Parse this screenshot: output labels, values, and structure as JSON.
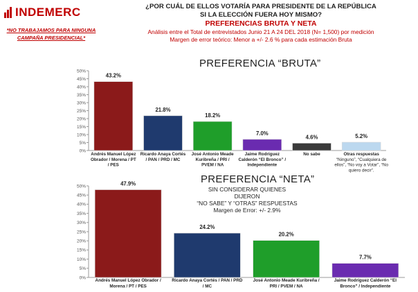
{
  "brand": {
    "name": "INDEMERC",
    "color": "#c00000"
  },
  "disclaimer": "*NO TRABAJAMOS PARA NINGUNA CAMPAÑA PRESIDENCIAL*",
  "header": {
    "question_line1": "¿POR CUÁL DE ELLOS VOTARÍA PARA PRESIDENTE DE LA REPÚBLICA",
    "question_line2": "SI LA ELECCIÓN FUERA HOY MISMO?",
    "subtitle": "PREFERENCIAS BRUTA Y NETA",
    "note_line1": "Análisis entre el Total de entrevistados Junio 21 A 24 DEL 2018 (N= 1,500) por medición",
    "note_line2": "Margen de error teórico: Menor a +/- 2.6 % para cada estimación Bruta"
  },
  "neta_notes": {
    "line1": "SIN CONSIDERAR QUIENES DIJERON",
    "line2": "“NO SABE” Y “OTRAS” RESPUESTAS",
    "line3": "Margen de Error: +/- 2.9%"
  },
  "chart_data": [
    {
      "type": "bar",
      "title": "PREFERENCIA “BRUTA”",
      "ylim": [
        0,
        50
      ],
      "yticks": [
        "0%",
        "5%",
        "10%",
        "15%",
        "20%",
        "25%",
        "30%",
        "35%",
        "40%",
        "45%",
        "50%"
      ],
      "grid": false,
      "categories": [
        [
          "Andrés Manuel López",
          "Obrador / Morena / PT",
          "/ PES"
        ],
        [
          "Ricardo Anaya Cortés",
          "/ PAN / PRD / MC"
        ],
        [
          "José Antonio Meade",
          "Kuribreña / PRI /",
          "PVEM / NA"
        ],
        [
          "Jaime Rodríguez",
          "Calderón “El Bronco” /",
          "Independiente"
        ],
        [
          "No sabe"
        ],
        [
          "Otras respuestas",
          "“Ninguno”, “Cualquiera de",
          "ellos”, “No voy a Votar”, “No",
          "quiero decir”."
        ]
      ],
      "values": [
        43.2,
        21.8,
        18.2,
        7.0,
        4.6,
        5.2
      ],
      "labels": [
        "43.2%",
        "21.8%",
        "18.2%",
        "7.0%",
        "4.6%",
        "5.2%"
      ],
      "colors": [
        "#8b1a1a",
        "#1f3a6e",
        "#1f9e2a",
        "#6a2bb0",
        "#3b3b3b",
        "#bcd8ef"
      ]
    },
    {
      "type": "bar",
      "title": "PREFERENCIA “NETA”",
      "ylim": [
        0,
        50
      ],
      "yticks": [
        "0%",
        "5%",
        "10%",
        "15%",
        "20%",
        "25%",
        "30%",
        "35%",
        "40%",
        "45%",
        "50%"
      ],
      "grid": false,
      "categories": [
        [
          "Andrés Manuel López Obrador /",
          "Morena / PT / PES"
        ],
        [
          "Ricardo Anaya Cortés / PAN / PRD",
          "/ MC"
        ],
        [
          "José Antonio Meade Kuribreña /",
          "PRI / PVEM / NA"
        ],
        [
          "Jaime Rodríguez Calderón “El",
          "Bronco” / Independiente"
        ]
      ],
      "values": [
        47.9,
        24.2,
        20.2,
        7.7
      ],
      "labels": [
        "47.9%",
        "24.2%",
        "20.2%",
        "7.7%"
      ],
      "colors": [
        "#8b1a1a",
        "#1f3a6e",
        "#1f9e2a",
        "#6a2bb0"
      ]
    }
  ]
}
